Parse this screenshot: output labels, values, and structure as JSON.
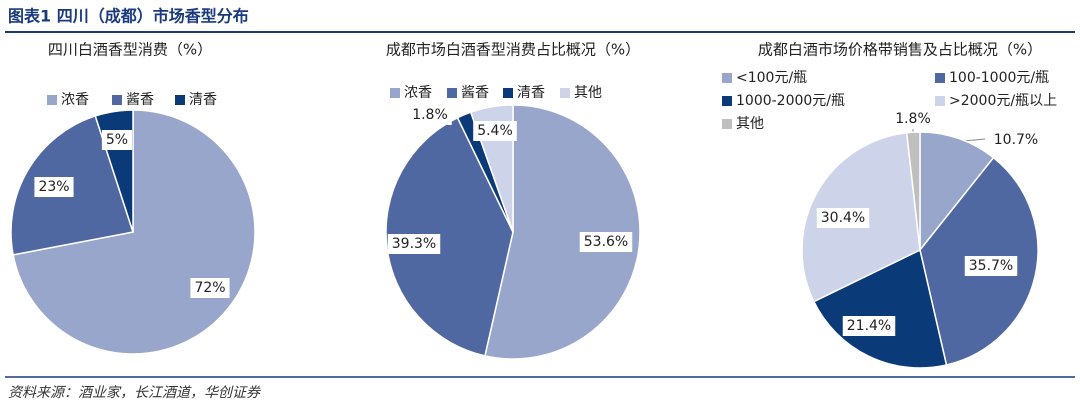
{
  "title": "图表1 四川（成都）市场香型分布",
  "source": "资料来源：酒业家，长江酒道，华创证券",
  "chart_data": [
    {
      "type": "pie",
      "title": "四川白酒香型消费（%）",
      "categories": [
        "浓香",
        "酱香",
        "清香"
      ],
      "values": [
        72,
        23,
        5
      ],
      "value_labels": [
        "72%",
        "23%",
        "5%"
      ],
      "colors": [
        "#98a6cc",
        "#5068a2",
        "#0b3a78"
      ]
    },
    {
      "type": "pie",
      "title": "成都市场白酒香型消费占比概况（%）",
      "categories": [
        "浓香",
        "酱香",
        "清香",
        "其他"
      ],
      "values": [
        53.6,
        39.3,
        1.8,
        5.4
      ],
      "value_labels": [
        "53.6%",
        "39.3%",
        "1.8%",
        "5.4%"
      ],
      "colors": [
        "#98a6cc",
        "#5068a2",
        "#0b3a78",
        "#cdd3e8"
      ]
    },
    {
      "type": "pie",
      "title": "成都白酒市场价格带销售及占比概况（%）",
      "categories": [
        "<100元/瓶",
        "100-1000元/瓶",
        "1000-2000元/瓶",
        ">2000元/瓶以上",
        "其他"
      ],
      "values": [
        10.7,
        35.7,
        21.4,
        30.4,
        1.8
      ],
      "value_labels": [
        "10.7%",
        "35.7%",
        "21.4%",
        "30.4%",
        "1.8%"
      ],
      "colors": [
        "#98a6cc",
        "#5068a2",
        "#0b3a78",
        "#cdd3e8",
        "#bfbfbf"
      ]
    }
  ]
}
